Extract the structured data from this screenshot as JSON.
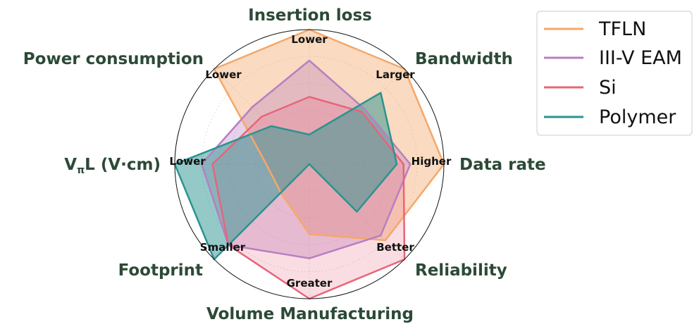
{
  "chart_data": {
    "type": "radar",
    "axes": [
      {
        "title": "Insertion loss",
        "level_label": "Lower"
      },
      {
        "title": "Bandwidth",
        "level_label": "Larger"
      },
      {
        "title": "Data rate",
        "level_label": "Higher"
      },
      {
        "title": "Reliability",
        "level_label": "Better"
      },
      {
        "title": "Volume Manufacturing",
        "level_label": "Greater"
      },
      {
        "title": "Footprint",
        "level_label": "Smaller"
      },
      {
        "title_main": "V",
        "title_sub": "π",
        "title_rest": "L (V·cm)",
        "level_label": "Lower"
      },
      {
        "title": "Power consumption",
        "level_label": "Lower"
      }
    ],
    "range": [
      0,
      1
    ],
    "grid": true,
    "legend_position": "upper-right-outside",
    "series": [
      {
        "name": "TFLN",
        "color": "#f4a86a",
        "fill_opacity": 0.42,
        "values": [
          1.0,
          1.0,
          1.0,
          0.8,
          0.52,
          0.3,
          0.32,
          1.0
        ]
      },
      {
        "name": "III-V EAM",
        "color": "#b77fc1",
        "fill_opacity": 0.35,
        "values": [
          0.77,
          0.58,
          0.75,
          0.75,
          0.7,
          0.85,
          0.8,
          0.6
        ]
      },
      {
        "name": "Si",
        "color": "#e8647a",
        "fill_opacity": 0.22,
        "values": [
          0.5,
          0.55,
          0.7,
          1.0,
          1.0,
          0.85,
          0.72,
          0.5
        ]
      },
      {
        "name": "Polymer",
        "color": "#2a9390",
        "fill_opacity": 0.5,
        "values": [
          0.22,
          0.75,
          0.65,
          0.5,
          0.0,
          1.0,
          1.0,
          0.4
        ]
      }
    ]
  }
}
